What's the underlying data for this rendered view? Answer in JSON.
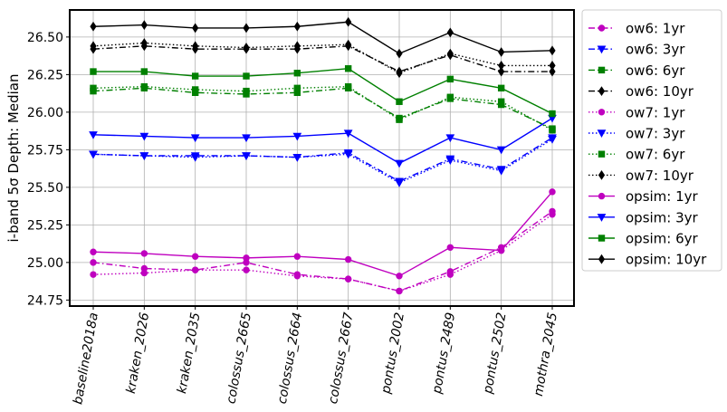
{
  "chart_data": {
    "type": "line",
    "title": "",
    "xlabel": "",
    "ylabel": "i-band 5σ Depth: Median",
    "ylim": [
      24.71,
      26.68
    ],
    "yticks": [
      "24.75",
      "25.00",
      "25.25",
      "25.50",
      "25.75",
      "26.00",
      "26.25",
      "26.50"
    ],
    "grid": true,
    "legend_position": "outside-right",
    "categories": [
      "baseline2018a",
      "kraken_2026",
      "kraken_2035",
      "colossus_2665",
      "colossus_2664",
      "colossus_2667",
      "pontus_2002",
      "pontus_2489",
      "pontus_2502",
      "mothra_2045"
    ],
    "series": [
      {
        "name": "ow6: 1yr",
        "color": "#bf00bf",
        "marker": "circle",
        "linestyle": "dashdot",
        "values": [
          25.0,
          24.96,
          24.95,
          25.0,
          24.92,
          24.89,
          24.81,
          24.94,
          25.1,
          25.34
        ]
      },
      {
        "name": "ow6: 3yr",
        "color": "#0000ff",
        "marker": "triangle-down",
        "linestyle": "dashdot",
        "values": [
          25.72,
          25.71,
          25.71,
          25.71,
          25.7,
          25.73,
          25.54,
          25.69,
          25.62,
          25.83
        ]
      },
      {
        "name": "ow6: 6yr",
        "color": "#008000",
        "marker": "square",
        "linestyle": "dashdot",
        "values": [
          26.14,
          26.16,
          26.13,
          26.12,
          26.13,
          26.16,
          25.96,
          26.09,
          26.05,
          25.89
        ]
      },
      {
        "name": "ow6: 10yr",
        "color": "#000000",
        "marker": "diamond",
        "linestyle": "dashdot",
        "values": [
          26.42,
          26.44,
          26.42,
          26.42,
          26.42,
          26.44,
          26.27,
          26.38,
          26.27,
          26.27
        ]
      },
      {
        "name": "ow7: 1yr",
        "color": "#bf00bf",
        "marker": "circle",
        "linestyle": "dotted",
        "values": [
          24.92,
          24.93,
          24.95,
          24.95,
          24.91,
          24.89,
          24.81,
          24.92,
          25.08,
          25.32
        ]
      },
      {
        "name": "ow7: 3yr",
        "color": "#0000ff",
        "marker": "triangle-down",
        "linestyle": "dotted",
        "values": [
          25.72,
          25.71,
          25.7,
          25.71,
          25.7,
          25.72,
          25.53,
          25.68,
          25.61,
          25.82
        ]
      },
      {
        "name": "ow7: 6yr",
        "color": "#008000",
        "marker": "square",
        "linestyle": "dotted",
        "values": [
          26.16,
          26.17,
          26.15,
          26.14,
          26.16,
          26.17,
          25.95,
          26.1,
          26.07,
          25.88
        ]
      },
      {
        "name": "ow7: 10yr",
        "color": "#000000",
        "marker": "diamond",
        "linestyle": "dotted",
        "values": [
          26.44,
          26.46,
          26.44,
          26.43,
          26.44,
          26.45,
          26.26,
          26.39,
          26.31,
          26.31
        ]
      },
      {
        "name": "opsim: 1yr",
        "color": "#bf00bf",
        "marker": "circle",
        "linestyle": "solid",
        "values": [
          25.07,
          25.06,
          25.04,
          25.03,
          25.04,
          25.02,
          24.91,
          25.1,
          25.08,
          25.47
        ]
      },
      {
        "name": "opsim: 3yr",
        "color": "#0000ff",
        "marker": "triangle-down",
        "linestyle": "solid",
        "values": [
          25.85,
          25.84,
          25.83,
          25.83,
          25.84,
          25.86,
          25.66,
          25.83,
          25.75,
          25.96
        ]
      },
      {
        "name": "opsim: 6yr",
        "color": "#008000",
        "marker": "square",
        "linestyle": "solid",
        "values": [
          26.27,
          26.27,
          26.24,
          26.24,
          26.26,
          26.29,
          26.07,
          26.22,
          26.16,
          25.99
        ]
      },
      {
        "name": "opsim: 10yr",
        "color": "#000000",
        "marker": "diamond",
        "linestyle": "solid",
        "values": [
          26.57,
          26.58,
          26.56,
          26.56,
          26.57,
          26.6,
          26.39,
          26.53,
          26.4,
          26.41
        ]
      }
    ]
  }
}
